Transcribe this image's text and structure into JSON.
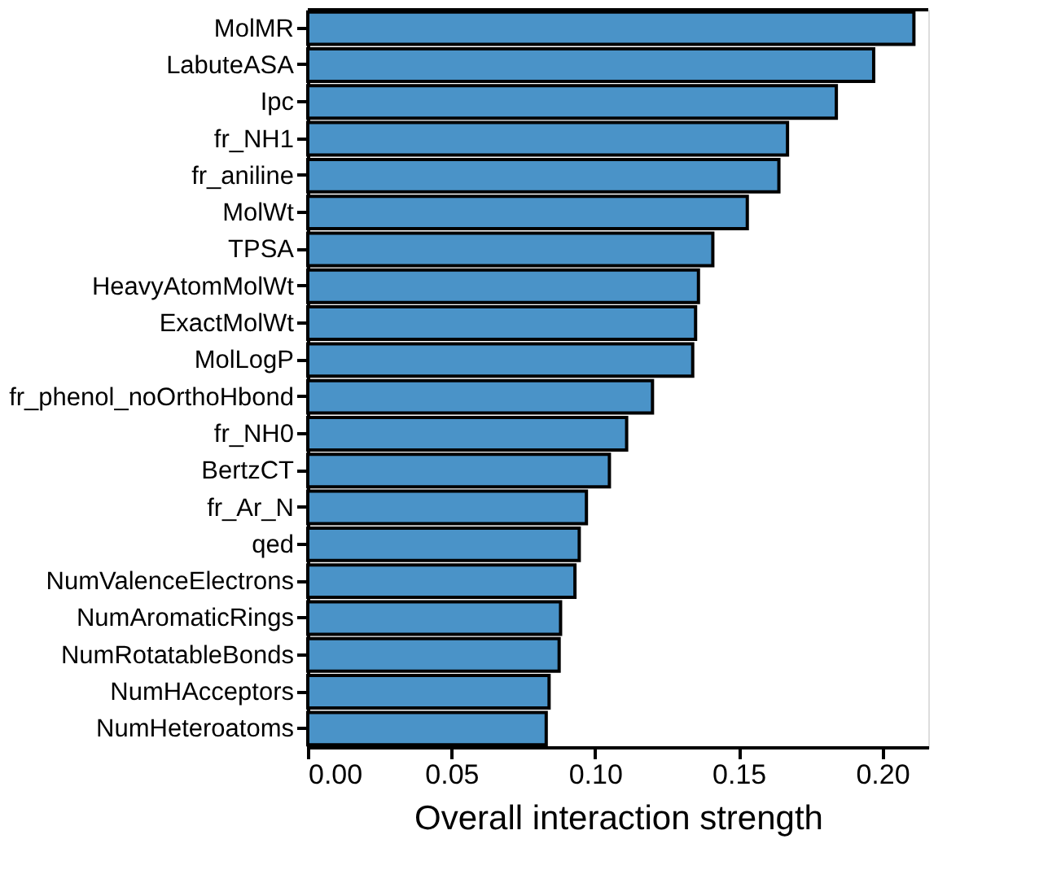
{
  "chart_data": {
    "type": "bar",
    "orientation": "horizontal",
    "xlabel": "Overall interaction strength",
    "color": "#4a93c8",
    "categories": [
      "MolMR",
      "LabuteASA",
      "Ipc",
      "fr_NH1",
      "fr_aniline",
      "MolWt",
      "TPSA",
      "HeavyAtomMolWt",
      "ExactMolWt",
      "MolLogP",
      "fr_phenol_noOrthoHbond",
      "fr_NH0",
      "BertzCT",
      "fr_Ar_N",
      "qed",
      "NumValenceElectrons",
      "NumAromaticRings",
      "NumRotatableBonds",
      "NumHAcceptors",
      "NumHeteroatoms"
    ],
    "values": [
      0.211,
      0.197,
      0.184,
      0.167,
      0.164,
      0.153,
      0.141,
      0.136,
      0.135,
      0.134,
      0.12,
      0.111,
      0.105,
      0.097,
      0.0945,
      0.093,
      0.088,
      0.0875,
      0.084,
      0.083
    ],
    "xlim": [
      0,
      0.216
    ],
    "xticks": [
      {
        "value": 0,
        "label": "0.00"
      },
      {
        "value": 0.05,
        "label": "0.05"
      },
      {
        "value": 0.1,
        "label": "0.10"
      },
      {
        "value": 0.15,
        "label": "0.15"
      },
      {
        "value": 0.2,
        "label": "0.20"
      }
    ],
    "grid": false
  }
}
